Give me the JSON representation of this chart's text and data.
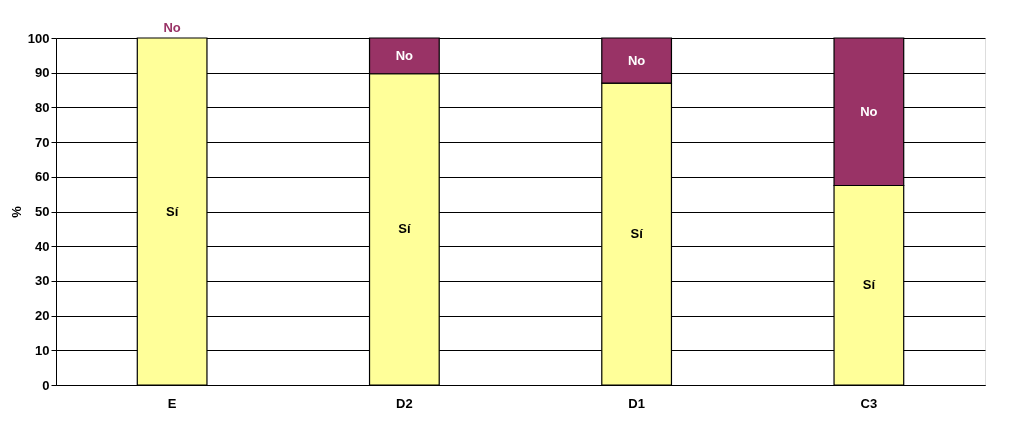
{
  "chart_data": {
    "type": "bar",
    "stacked": true,
    "ylabel": "%",
    "categories": [
      "E",
      "D2",
      "D1",
      "C3"
    ],
    "series": [
      {
        "name": "Sí",
        "color": "#ffff99",
        "values": [
          100,
          89.7,
          87.0,
          57.5
        ]
      },
      {
        "name": "No",
        "color": "#993366",
        "values": [
          0,
          10.3,
          13.0,
          42.5
        ]
      }
    ],
    "ylim": [
      0,
      100
    ],
    "yticks": [
      0,
      10,
      20,
      30,
      40,
      50,
      60,
      70,
      80,
      90,
      100
    ],
    "grid": "y",
    "legend": false
  }
}
